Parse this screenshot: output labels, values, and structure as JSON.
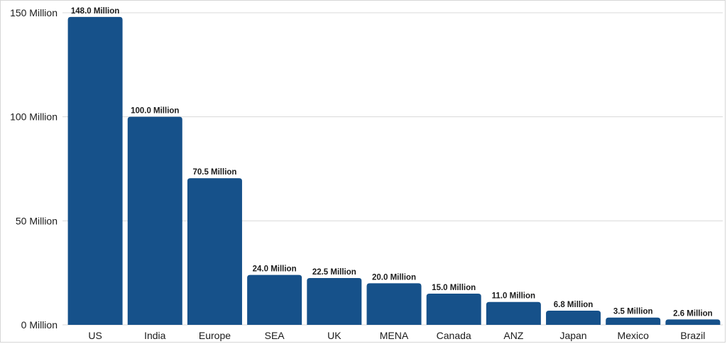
{
  "chart_data": {
    "type": "bar",
    "title": "",
    "xlabel": "",
    "ylabel": "",
    "categories": [
      "US",
      "India",
      "Europe",
      "SEA",
      "UK",
      "MENA",
      "Canada",
      "ANZ",
      "Japan",
      "Mexico",
      "Brazil"
    ],
    "values": [
      148.0,
      100.0,
      70.5,
      24.0,
      22.5,
      20.0,
      15.0,
      11.0,
      6.8,
      3.5,
      2.6
    ],
    "value_labels": [
      "148.0 Million",
      "100.0 Million",
      "70.5 Million",
      "24.0 Million",
      "22.5 Million",
      "20.0 Million",
      "15.0 Million",
      "11.0 Million",
      "6.8 Million",
      "3.5 Million",
      "2.6 Million"
    ],
    "ylim": [
      0,
      150
    ],
    "yticks": [
      0,
      50,
      100,
      150
    ],
    "ytick_labels": [
      "0 Million",
      "50 Million",
      "100 Million",
      "150 Million"
    ],
    "grid": true,
    "bar_color": "#16518a",
    "grid_color": "#d9d9d9"
  }
}
